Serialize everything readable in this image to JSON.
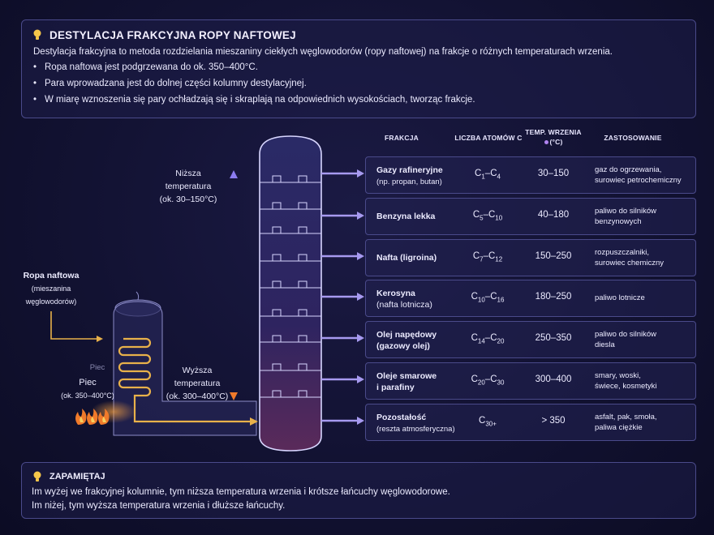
{
  "header": {
    "title": "DESTYLACJA FRAKCYJNA ROPY NAFTOWEJ",
    "intro": "Destylacja frakcyjna to metoda rozdzielania mieszaniny ciekłych węglowodorów (ropy naftowej) na frakcje o różnych temperaturach wrzenia.",
    "bullets": [
      "Ropa naftowa jest podgrzewana do ok. 350–400°C.",
      "Para wprowadzana jest do dolnej części kolumny destylacyjnej.",
      "W miarę wznoszenia się pary ochładzają się i skraplają na odpowiednich wysokościach, tworząc frakcje."
    ]
  },
  "columns": {
    "fraction": "FRAKCJA",
    "carbons": "LICZBA ATOMÓW C",
    "temp_l1": "TEMP. WRZENIA",
    "temp_l2": "(°C)",
    "use": "ZASTOSOWANIE"
  },
  "diagram": {
    "low_temp": [
      "Niższa",
      "temperatura",
      "(ok. 30–150°C)"
    ],
    "high_temp": [
      "Wyższa",
      "temperatura",
      "(ok. 300–400°C)"
    ],
    "crude": [
      "Ropa naftowa",
      "(mieszanina",
      "węglowodorów)"
    ],
    "furnace_ghost": "Piec",
    "furnace": [
      "Piec",
      "(ok. 350–400°C)"
    ]
  },
  "fractions": [
    {
      "name": "Gazy rafineryjne",
      "sub": "(np. propan, butan)",
      "c_from": "1",
      "c_to": "4",
      "temp": "30–150",
      "use": [
        "gaz do ogrzewania,",
        "surowiec petrochemiczny"
      ]
    },
    {
      "name": "Benzyna lekka",
      "sub": "",
      "c_from": "5",
      "c_to": "10",
      "temp": "40–180",
      "use": [
        "paliwo do silników",
        "benzynowych"
      ]
    },
    {
      "name": "Nafta (ligroina)",
      "sub": "",
      "c_from": "7",
      "c_to": "12",
      "temp": "150–250",
      "use": [
        "rozpuszczalniki,",
        "surowiec chemiczny"
      ]
    },
    {
      "name": "Kerosyna",
      "sub": "(nafta lotnicza)",
      "c_from": "10",
      "c_to": "16",
      "temp": "180–250",
      "use": [
        "paliwo lotnicze"
      ]
    },
    {
      "name": "Olej napędowy",
      "sub": "(gazowy olej)",
      "c_from": "14",
      "c_to": "20",
      "temp": "250–350",
      "use": [
        "paliwo do silników",
        "diesla"
      ]
    },
    {
      "name": "Oleje smarowe",
      "sub": "i parafiny",
      "c_from": "20",
      "c_to": "30",
      "temp": "300–400",
      "use": [
        "smary, woski,",
        "świece, kosmetyki"
      ]
    },
    {
      "name": "Pozostałość",
      "sub": "(reszta atmosferyczna)",
      "c_from": "30+",
      "c_to": "",
      "temp": "> 350",
      "use": [
        "asfalt, pak, smoła,",
        "paliwa ciężkie"
      ]
    }
  ],
  "footer": {
    "title": "ZAPAMIĘTAJ",
    "lines": [
      "Im wyżej we frakcyjnej kolumnie, tym niższa temperatura wrzenia i krótsze łańcuchy węglowodorowe.",
      "Im niżej, tym wyższa temperatura wrzenia i dłuższe łańcuchy."
    ]
  },
  "colors": {
    "accent": "#8c7cf0",
    "warm": "#f07a2a",
    "flow": "#e8b14a"
  }
}
